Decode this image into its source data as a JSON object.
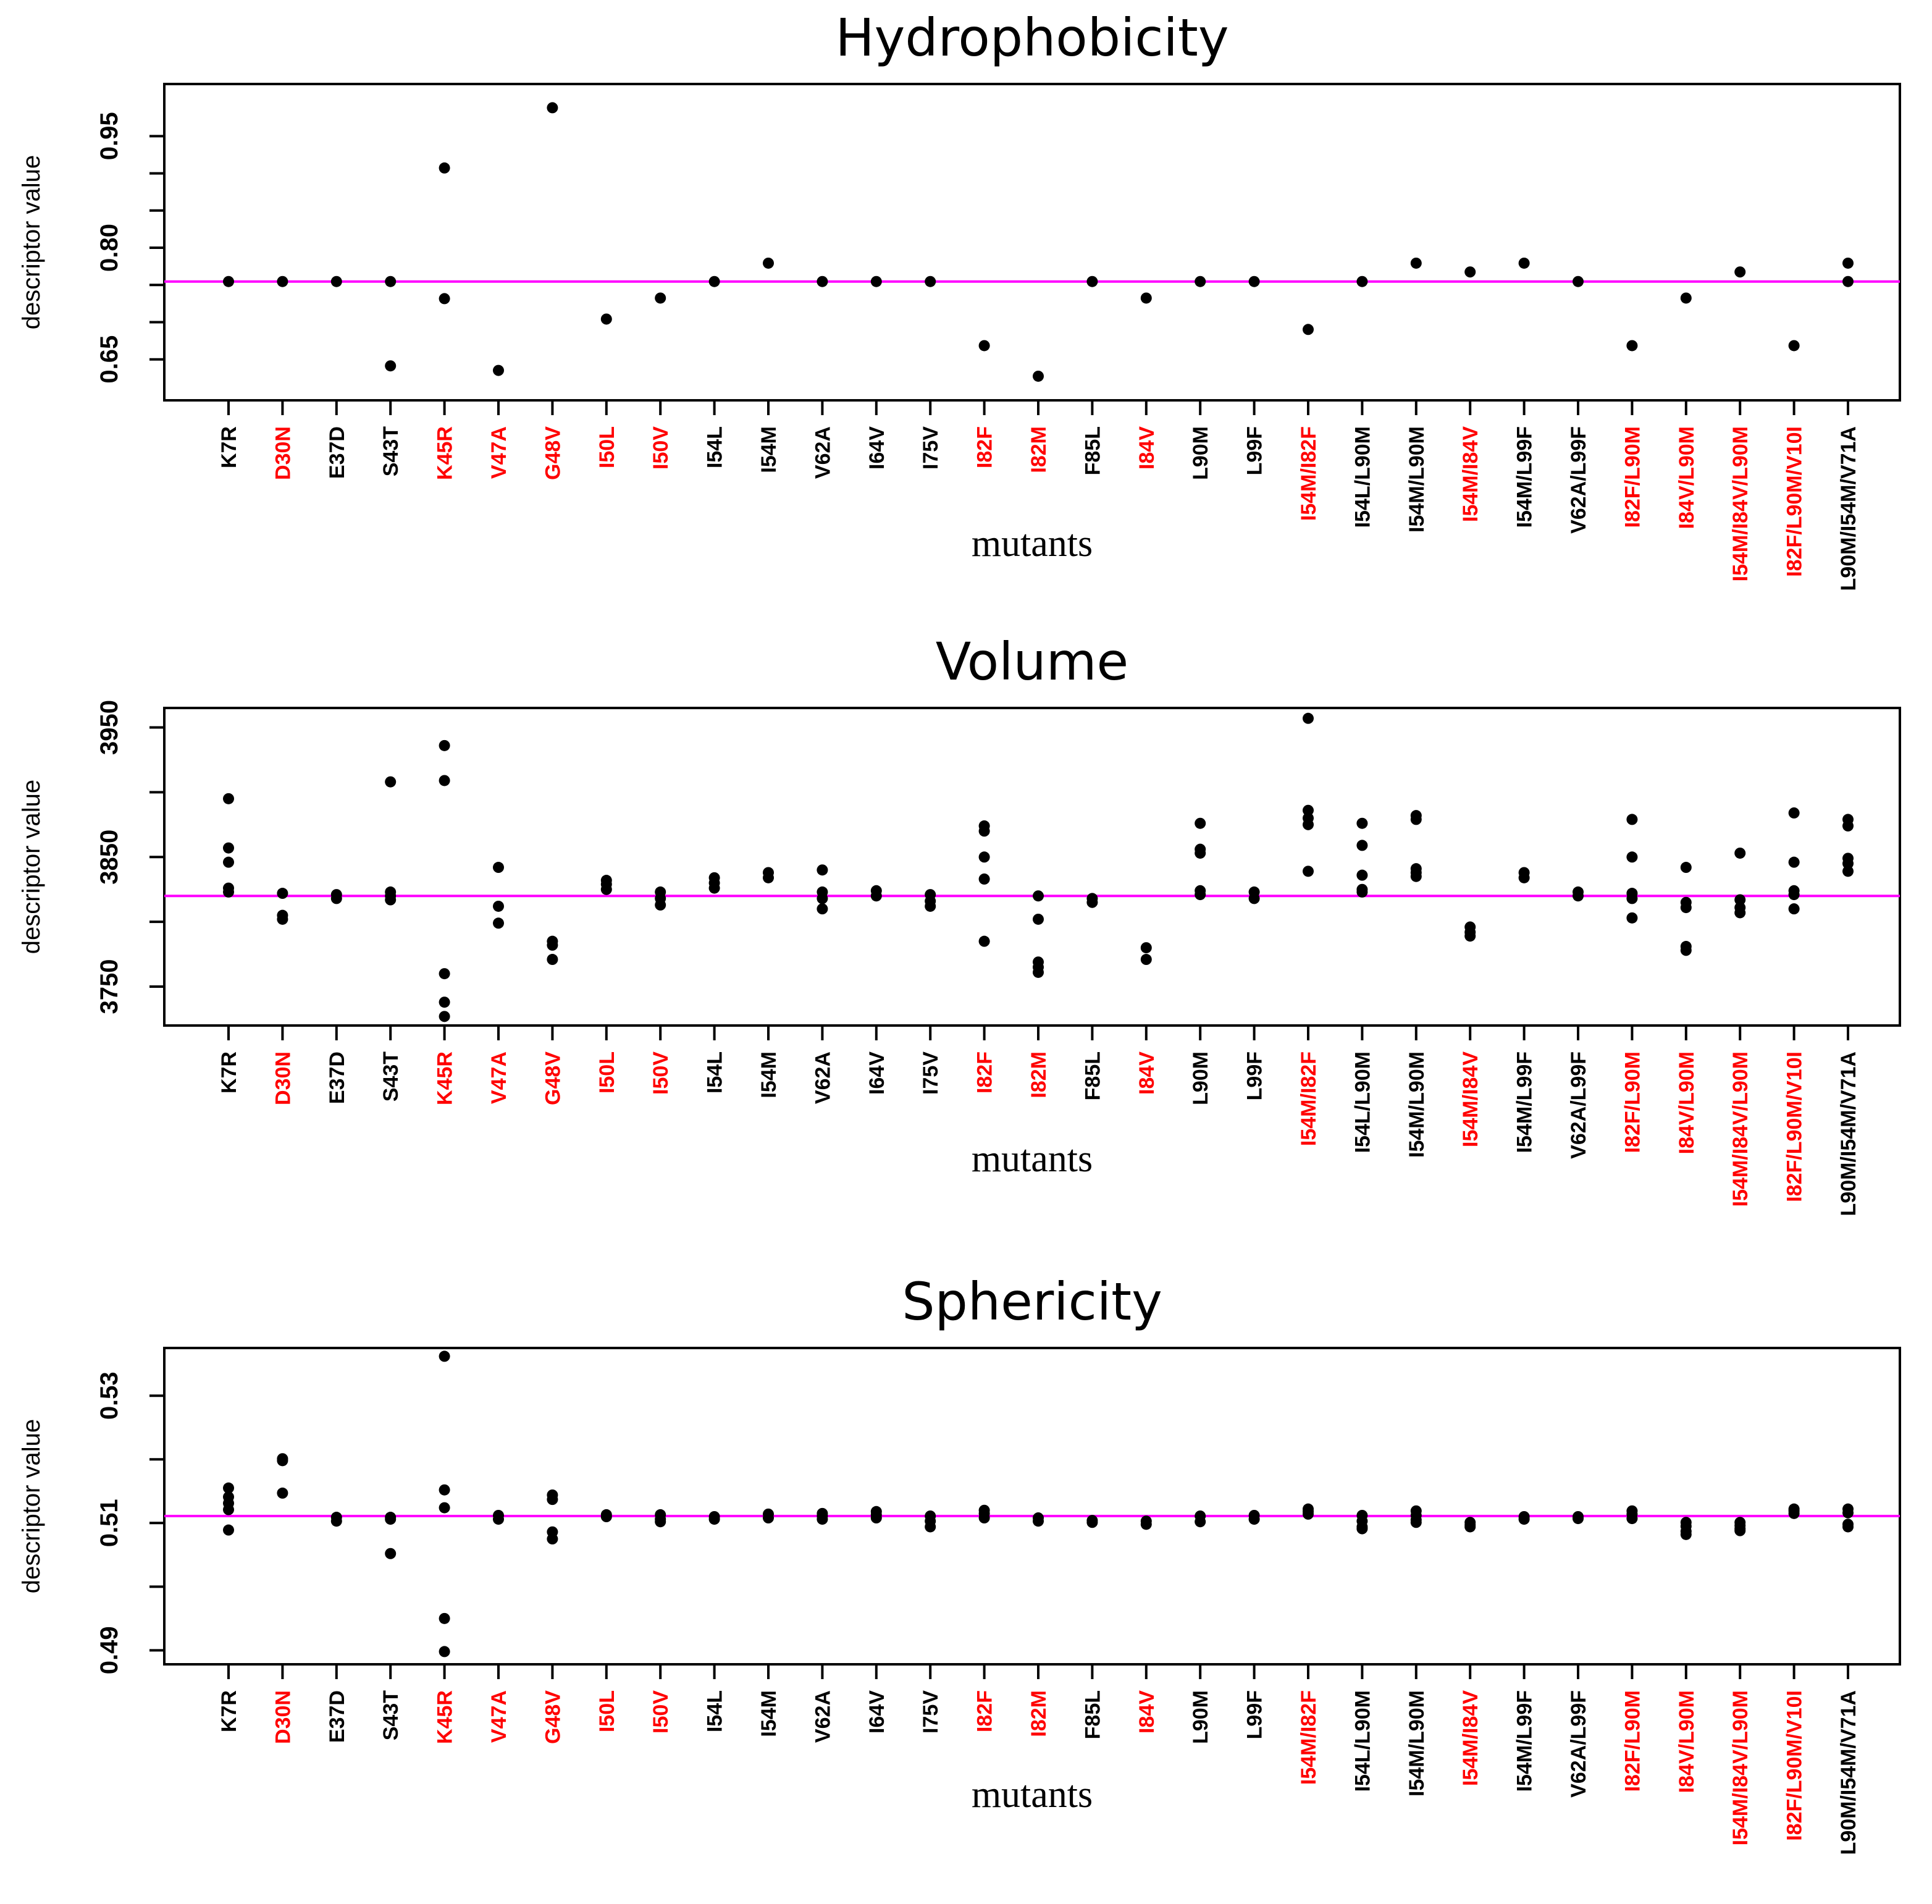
{
  "chart_data": [
    {
      "type": "scatter",
      "title": "Hydrophobicity",
      "xlabel": "mutants",
      "ylabel": "descriptor value",
      "ylim": [
        0.595,
        1.02
      ],
      "yticks": [
        0.65,
        0.8,
        0.95
      ],
      "ytick_labels": [
        "0.65",
        "0.80",
        "0.95"
      ],
      "reference_line": 0.7546,
      "series": [
        {
          "name": "K7R",
          "values": [
            0.7546
          ]
        },
        {
          "name": "D30N",
          "values": [
            0.7546
          ]
        },
        {
          "name": "E37D",
          "values": [
            0.7546
          ]
        },
        {
          "name": "S43T",
          "values": [
            0.7546,
            0.6413
          ]
        },
        {
          "name": "K45R",
          "values": [
            0.9072,
            0.7316
          ]
        },
        {
          "name": "V47A",
          "values": [
            0.6352
          ]
        },
        {
          "name": "G48V",
          "values": [
            0.9881
          ]
        },
        {
          "name": "I50L",
          "values": [
            0.7042
          ]
        },
        {
          "name": "I50V",
          "values": [
            0.7324
          ]
        },
        {
          "name": "I54L",
          "values": [
            0.7546
          ]
        },
        {
          "name": "I54M",
          "values": [
            0.7793
          ]
        },
        {
          "name": "V62A",
          "values": [
            0.7546
          ]
        },
        {
          "name": "I64V",
          "values": [
            0.7546
          ]
        },
        {
          "name": "I75V",
          "values": [
            0.7546
          ]
        },
        {
          "name": "I82F",
          "values": [
            0.6685
          ]
        },
        {
          "name": "I82M",
          "values": [
            0.6274
          ]
        },
        {
          "name": "F85L",
          "values": [
            0.7546
          ]
        },
        {
          "name": "I84V",
          "values": [
            0.7324
          ]
        },
        {
          "name": "L90M",
          "values": [
            0.7546
          ]
        },
        {
          "name": "L99F",
          "values": [
            0.7546
          ]
        },
        {
          "name": "I54M/I82F",
          "values": [
            0.6902
          ]
        },
        {
          "name": "I54L/L90M",
          "values": [
            0.7546
          ]
        },
        {
          "name": "I54M/L90M",
          "values": [
            0.7793
          ]
        },
        {
          "name": "I54M/I84V",
          "values": [
            0.7675
          ]
        },
        {
          "name": "I54M/L99F",
          "values": [
            0.7793
          ]
        },
        {
          "name": "V62A/L99F",
          "values": [
            0.7546
          ]
        },
        {
          "name": "I82F/L90M",
          "values": [
            0.6685
          ]
        },
        {
          "name": "I84V/L90M",
          "values": [
            0.7324
          ]
        },
        {
          "name": "I54M/I84V/L90M",
          "values": [
            0.7675
          ]
        },
        {
          "name": "I82F/L90M/V10I",
          "values": [
            0.6685
          ]
        },
        {
          "name": "L90M/I54M/V71A",
          "values": [
            0.7793,
            0.7546
          ]
        }
      ]
    },
    {
      "type": "scatter",
      "title": "Volume",
      "xlabel": "mutants",
      "ylabel": "descriptor value",
      "ylim": [
        3720,
        3965
      ],
      "yticks": [
        3750,
        3850,
        3950
      ],
      "ytick_labels": [
        "3750",
        "3850",
        "3950"
      ],
      "reference_line": 3820,
      "series": [
        {
          "name": "K7R",
          "values": [
            3895,
            3857,
            3846,
            3826,
            3823
          ]
        },
        {
          "name": "D30N",
          "values": [
            3822,
            3805,
            3802
          ]
        },
        {
          "name": "E37D",
          "values": [
            3821,
            3818
          ]
        },
        {
          "name": "S43T",
          "values": [
            3908,
            3823,
            3820,
            3817
          ]
        },
        {
          "name": "K45R",
          "values": [
            3936,
            3909,
            3760,
            3738,
            3727
          ]
        },
        {
          "name": "V47A",
          "values": [
            3842,
            3812,
            3799
          ]
        },
        {
          "name": "G48V",
          "values": [
            3785,
            3782,
            3771
          ]
        },
        {
          "name": "I50L",
          "values": [
            3832,
            3829,
            3825
          ]
        },
        {
          "name": "I50V",
          "values": [
            3823,
            3818,
            3813
          ]
        },
        {
          "name": "I54L",
          "values": [
            3834,
            3830,
            3826
          ]
        },
        {
          "name": "I54M",
          "values": [
            3838,
            3834
          ]
        },
        {
          "name": "V62A",
          "values": [
            3840,
            3823,
            3818,
            3810
          ]
        },
        {
          "name": "I64V",
          "values": [
            3824,
            3820
          ]
        },
        {
          "name": "I75V",
          "values": [
            3821,
            3816,
            3812
          ]
        },
        {
          "name": "I82F",
          "values": [
            3874,
            3870,
            3850,
            3833,
            3785
          ]
        },
        {
          "name": "I82M",
          "values": [
            3820,
            3802,
            3769,
            3765,
            3761
          ]
        },
        {
          "name": "F85L",
          "values": [
            3818,
            3815
          ]
        },
        {
          "name": "I84V",
          "values": [
            3780,
            3771
          ]
        },
        {
          "name": "L90M",
          "values": [
            3876,
            3856,
            3853,
            3824,
            3821
          ]
        },
        {
          "name": "L99F",
          "values": [
            3823,
            3818
          ]
        },
        {
          "name": "I54M/I82F",
          "values": [
            3957,
            3886,
            3880,
            3875,
            3839
          ]
        },
        {
          "name": "I54L/L90M",
          "values": [
            3876,
            3859,
            3836,
            3825,
            3823
          ]
        },
        {
          "name": "I54M/L90M",
          "values": [
            3882,
            3879,
            3841,
            3838,
            3835
          ]
        },
        {
          "name": "I54M/I84V",
          "values": [
            3796,
            3792,
            3789
          ]
        },
        {
          "name": "I54M/L99F",
          "values": [
            3838,
            3834
          ]
        },
        {
          "name": "V62A/L99F",
          "values": [
            3823,
            3820
          ]
        },
        {
          "name": "I82F/L90M",
          "values": [
            3879,
            3850,
            3822,
            3818,
            3803
          ]
        },
        {
          "name": "I84V/L90M",
          "values": [
            3842,
            3815,
            3811,
            3781,
            3778
          ]
        },
        {
          "name": "I54M/I84V/L90M",
          "values": [
            3853,
            3817,
            3811,
            3807
          ]
        },
        {
          "name": "I82F/L90M/V10I",
          "values": [
            3884,
            3846,
            3824,
            3821,
            3810
          ]
        },
        {
          "name": "L90M/I54M/V71A",
          "values": [
            3879,
            3874,
            3849,
            3845,
            3839
          ]
        }
      ]
    },
    {
      "type": "scatter",
      "title": "Sphericity",
      "xlabel": "mutants",
      "ylabel": "descriptor value",
      "ylim": [
        0.4878,
        0.5375
      ],
      "yticks": [
        0.49,
        0.5,
        0.51,
        0.52,
        0.53
      ],
      "ytick_labels": [
        "0.49",
        "",
        "0.51",
        "",
        "0.53"
      ],
      "reference_line": 0.5111,
      "series": [
        {
          "name": "K7R",
          "values": [
            0.5155,
            0.5141,
            0.5131,
            0.5121,
            0.5089
          ]
        },
        {
          "name": "D30N",
          "values": [
            0.5201,
            0.5198,
            0.5147
          ]
        },
        {
          "name": "E37D",
          "values": [
            0.5109,
            0.5103
          ]
        },
        {
          "name": "S43T",
          "values": [
            0.5109,
            0.5106,
            0.5052
          ]
        },
        {
          "name": "K45R",
          "values": [
            0.5362,
            0.5152,
            0.5124,
            0.495,
            0.4898
          ]
        },
        {
          "name": "V47A",
          "values": [
            0.5112,
            0.5106
          ]
        },
        {
          "name": "G48V",
          "values": [
            0.5144,
            0.5137,
            0.5086,
            0.5075
          ]
        },
        {
          "name": "I50L",
          "values": [
            0.5113,
            0.511
          ]
        },
        {
          "name": "I50V",
          "values": [
            0.5113,
            0.5106,
            0.5102
          ]
        },
        {
          "name": "I54L",
          "values": [
            0.511,
            0.5106
          ]
        },
        {
          "name": "I54M",
          "values": [
            0.5114,
            0.5108
          ]
        },
        {
          "name": "V62A",
          "values": [
            0.5115,
            0.5111,
            0.5106
          ]
        },
        {
          "name": "I64V",
          "values": [
            0.5118,
            0.5113,
            0.5108
          ]
        },
        {
          "name": "I75V",
          "values": [
            0.5111,
            0.5103,
            0.5094
          ]
        },
        {
          "name": "I82F",
          "values": [
            0.512,
            0.5115,
            0.5108
          ]
        },
        {
          "name": "I82M",
          "values": [
            0.5108,
            0.5103
          ]
        },
        {
          "name": "F85L",
          "values": [
            0.5104,
            0.5101
          ]
        },
        {
          "name": "I84V",
          "values": [
            0.5103,
            0.5098
          ]
        },
        {
          "name": "L90M",
          "values": [
            0.5111,
            0.5102
          ]
        },
        {
          "name": "L99F",
          "values": [
            0.5112,
            0.5106
          ]
        },
        {
          "name": "I54M/I82F",
          "values": [
            0.5122,
            0.5118,
            0.5114
          ]
        },
        {
          "name": "I54L/L90M",
          "values": [
            0.5112,
            0.5103,
            0.5094,
            0.5091
          ]
        },
        {
          "name": "I54M/L90M",
          "values": [
            0.5119,
            0.5112,
            0.5105,
            0.5101
          ]
        },
        {
          "name": "I54M/I84V",
          "values": [
            0.5101,
            0.5097,
            0.5094
          ]
        },
        {
          "name": "I54M/L99F",
          "values": [
            0.511,
            0.5106
          ]
        },
        {
          "name": "V62A/L99F",
          "values": [
            0.511,
            0.5107
          ]
        },
        {
          "name": "I82F/L90M",
          "values": [
            0.5119,
            0.5114,
            0.5107
          ]
        },
        {
          "name": "I84V/L90M",
          "values": [
            0.5101,
            0.5095,
            0.5087,
            0.5082
          ]
        },
        {
          "name": "I54M/I84V/L90M",
          "values": [
            0.5101,
            0.5096,
            0.5091,
            0.5088
          ]
        },
        {
          "name": "I82F/L90M/V10I",
          "values": [
            0.5122,
            0.5119,
            0.5115
          ]
        },
        {
          "name": "L90M/I54M/V71A",
          "values": [
            0.5122,
            0.5116,
            0.5098,
            0.5094
          ]
        }
      ]
    }
  ],
  "mutant_label_colors": {
    "K7R": "#000000",
    "D30N": "#ff0000",
    "E37D": "#000000",
    "S43T": "#000000",
    "K45R": "#ff0000",
    "V47A": "#ff0000",
    "G48V": "#ff0000",
    "I50L": "#ff0000",
    "I50V": "#ff0000",
    "I54L": "#000000",
    "I54M": "#000000",
    "V62A": "#000000",
    "I64V": "#000000",
    "I75V": "#000000",
    "I82F": "#ff0000",
    "I82M": "#ff0000",
    "F85L": "#000000",
    "I84V": "#ff0000",
    "L90M": "#000000",
    "L99F": "#000000",
    "I54M/I82F": "#ff0000",
    "I54L/L90M": "#000000",
    "I54M/L90M": "#000000",
    "I54M/I84V": "#ff0000",
    "I54M/L99F": "#000000",
    "V62A/L99F": "#000000",
    "I82F/L90M": "#ff0000",
    "I84V/L90M": "#ff0000",
    "I54M/I84V/L90M": "#ff0000",
    "I82F/L90M/V10I": "#ff0000",
    "L90M/I54M/V71A": "#000000"
  },
  "colors": {
    "reference_line": "#ff00ff",
    "point": "#000000",
    "axis": "#000000"
  }
}
